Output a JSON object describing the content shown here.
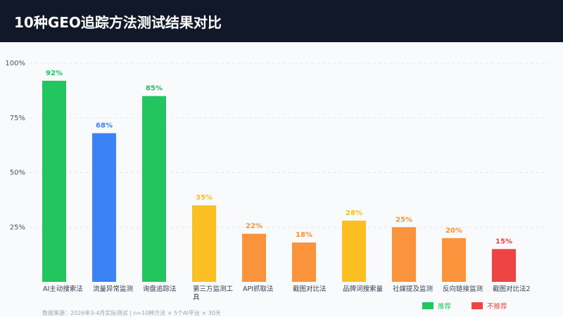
{
  "chart_data": {
    "type": "bar",
    "title": "10种GEO追踪方法测试结果对比",
    "categories": [
      "AI主动搜索法",
      "流量异常监测",
      "询盘追踪法",
      "第三方监测工具",
      "API抓取法",
      "截图对比法",
      "品牌词搜索量",
      "社媒提及监测",
      "反向链接监测",
      "截图对比法2"
    ],
    "values": [
      92,
      68,
      85,
      35,
      22,
      18,
      28,
      25,
      20,
      15
    ],
    "value_labels": [
      "92%",
      "68%",
      "85%",
      "35%",
      "22%",
      "18%",
      "28%",
      "25%",
      "20%",
      "15%"
    ],
    "colors": [
      "#22c55e",
      "#3b82f6",
      "#22c55e",
      "#fbbf24",
      "#fb923c",
      "#fb923c",
      "#fbbf24",
      "#fb923c",
      "#fb923c",
      "#ef4444"
    ],
    "ylim": [
      0,
      100
    ],
    "yticks": [
      {
        "value": 25,
        "label": "25%"
      },
      {
        "value": 50,
        "label": "50%"
      },
      {
        "value": 75,
        "label": "75%"
      },
      {
        "value": 100,
        "label": "100%"
      }
    ],
    "grid": true,
    "legend": [
      {
        "label": "推荐",
        "color": "#22c55e"
      },
      {
        "label": "不推荐",
        "color": "#ef4444"
      }
    ],
    "note": "数据来源：2026年3-4月实际测试 | n=10种方法 × 5个AI平台 × 30天"
  }
}
